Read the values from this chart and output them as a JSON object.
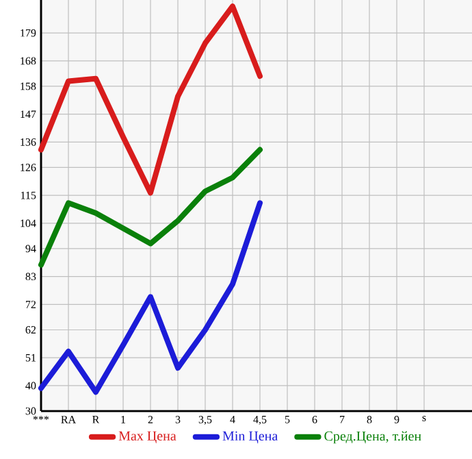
{
  "chart_data": {
    "type": "line",
    "categories": [
      "***",
      "RA",
      "R",
      "1",
      "2",
      "3",
      "3,5",
      "4",
      "4,5",
      "5",
      "6",
      "7",
      "8",
      "9",
      "s"
    ],
    "series": [
      {
        "name": "Max Цена",
        "color": "#d81c1c",
        "values": [
          133,
          160,
          161,
          138,
          116,
          154,
          175,
          189.5,
          162,
          null,
          null,
          null,
          null,
          null,
          null
        ]
      },
      {
        "name": "Min Цена",
        "color": "#1c1cd8",
        "values": [
          39,
          53.5,
          37.5,
          56,
          75,
          47,
          62,
          80,
          112,
          null,
          null,
          null,
          null,
          null,
          null
        ]
      },
      {
        "name": "Сред.Цена, т.йен",
        "color": "#0a800a",
        "values": [
          87.6,
          112,
          108,
          102,
          96,
          105,
          116.6,
          122,
          133,
          null,
          null,
          null,
          null,
          null,
          null
        ]
      }
    ],
    "ylim": [
      30,
      192
    ],
    "yticks": [
      30,
      40,
      51,
      62,
      72,
      83,
      94,
      104,
      115,
      126,
      136,
      147,
      158,
      168,
      179
    ],
    "grid": true,
    "legend": "bottom",
    "marker": "none",
    "line_style": "solid"
  }
}
